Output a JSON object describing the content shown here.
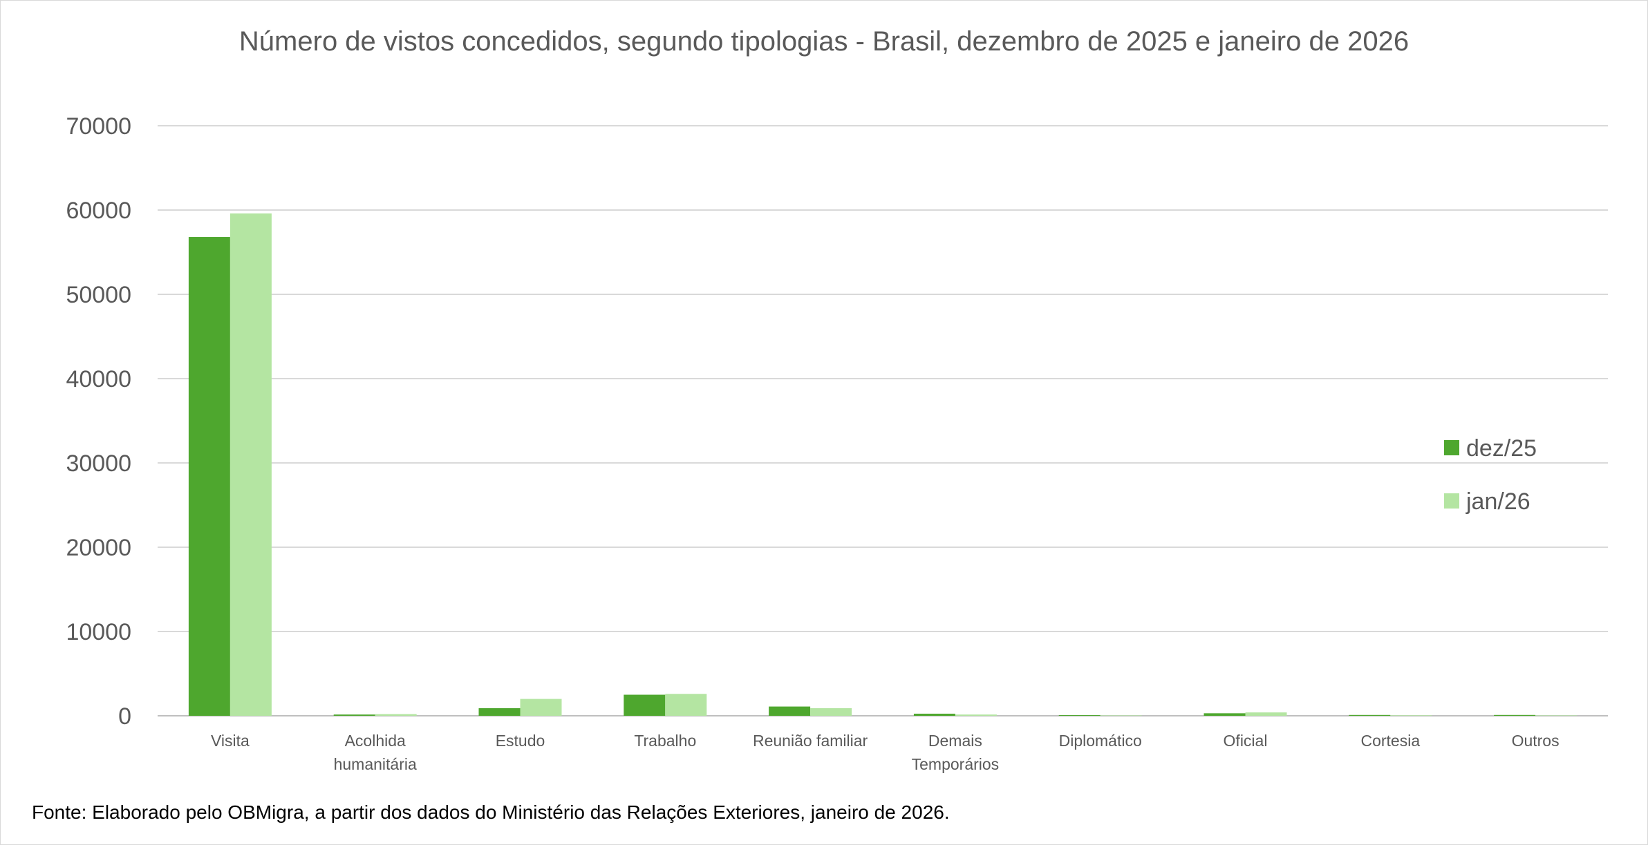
{
  "chart_data": {
    "type": "bar",
    "title": "Número de vistos concedidos, segundo tipologias - Brasil, dezembro de 2025 e janeiro de 2026",
    "categories": [
      "Visita",
      "Acolhida humanitária",
      "Estudo",
      "Trabalho",
      "Reunião familiar",
      "Demais Temporários",
      "Diplomático",
      "Oficial",
      "Cortesia",
      "Outros"
    ],
    "category_lines": [
      [
        "Visita"
      ],
      [
        "Acolhida",
        "humanitária"
      ],
      [
        "Estudo"
      ],
      [
        "Trabalho"
      ],
      [
        "Reunião familiar"
      ],
      [
        "Demais",
        "Temporários"
      ],
      [
        "Diplomático"
      ],
      [
        "Oficial"
      ],
      [
        "Cortesia"
      ],
      [
        "Outros"
      ]
    ],
    "series": [
      {
        "name": "dez/25",
        "color": "#4ea72e",
        "values": [
          56800,
          150,
          900,
          2500,
          1100,
          250,
          80,
          300,
          100,
          100
        ]
      },
      {
        "name": "jan/26",
        "color": "#b4e5a2",
        "values": [
          59600,
          200,
          2000,
          2600,
          900,
          150,
          50,
          400,
          60,
          50
        ]
      }
    ],
    "ylim": [
      0,
      70000
    ],
    "yticks": [
      0,
      10000,
      20000,
      30000,
      40000,
      50000,
      60000,
      70000
    ],
    "xlabel": "",
    "ylabel": "",
    "grid": true,
    "legend": "right"
  },
  "footer": "Fonte: Elaborado pelo OBMigra, a partir dos dados do Ministério das Relações Exteriores, janeiro de 2026."
}
